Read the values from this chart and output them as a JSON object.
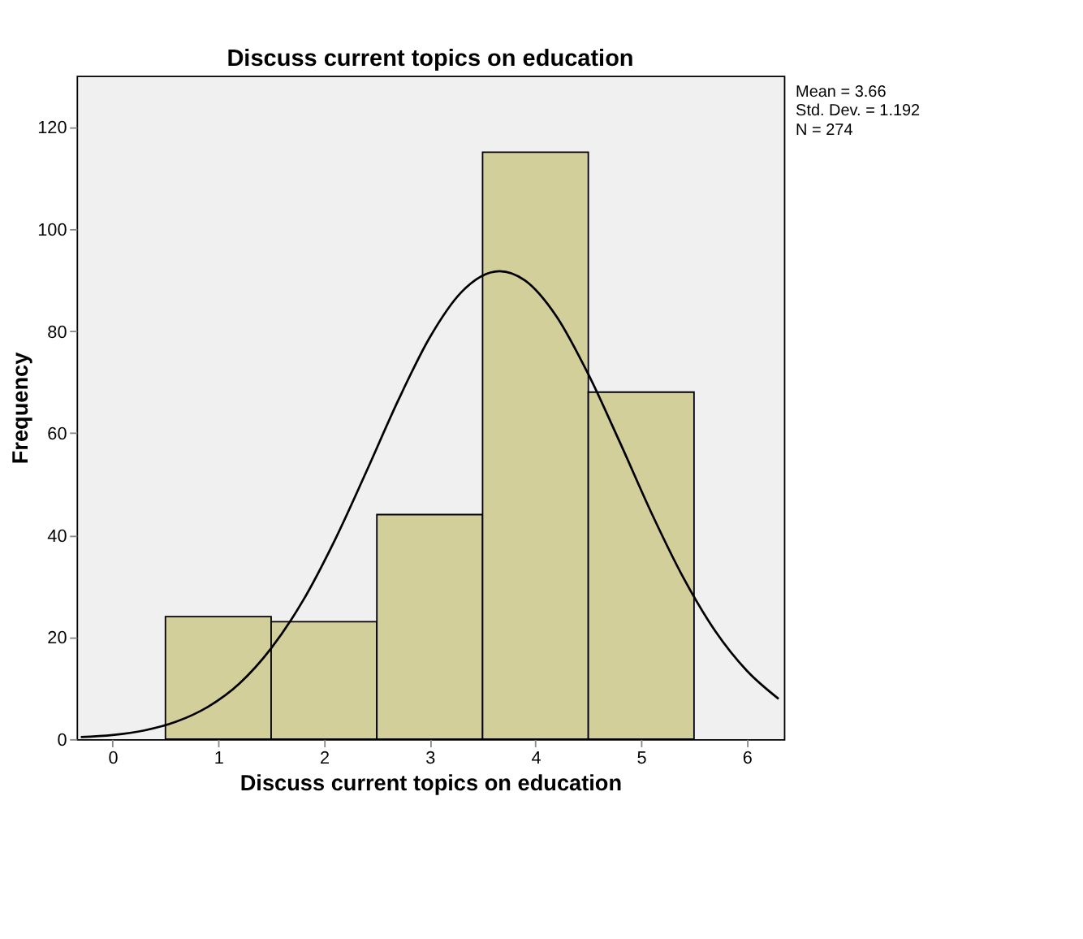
{
  "chart_data": {
    "type": "histogram",
    "title": "Discuss current topics on education",
    "xlabel": "Discuss current topics on education",
    "ylabel": "Frequency",
    "series": [
      {
        "bins": [
          0.5,
          1.5,
          2.5,
          3.5,
          4.5,
          5.5
        ],
        "values": [
          24,
          23,
          44,
          115,
          68
        ],
        "color": "#d3cf9b"
      },
      {
        "type": "line",
        "color": "#000000",
        "x": [
          -0.3,
          0,
          0.3,
          0.6,
          0.9,
          1.2,
          1.5,
          1.8,
          2.1,
          2.4,
          2.7,
          3.0,
          3.3,
          3.66,
          3.9,
          4.2,
          4.5,
          4.8,
          5.1,
          5.4,
          5.7,
          6.0,
          6.3
        ],
        "values": [
          0.4,
          0.8,
          1.7,
          3.4,
          6.3,
          10.9,
          17.8,
          27.1,
          38.9,
          52.4,
          66.3,
          78.7,
          87.6,
          91.7,
          89.9,
          82.8,
          71.5,
          58.1,
          44.2,
          31.6,
          21.2,
          13.4,
          7.9
        ]
      }
    ],
    "xlim": [
      -0.34,
      6.35
    ],
    "ylim": [
      0,
      130
    ],
    "xticks": [
      0,
      1,
      2,
      3,
      4,
      5,
      6
    ],
    "yticks": [
      0,
      20,
      40,
      60,
      80,
      100,
      120
    ],
    "grid": false,
    "annotations": [
      "Mean = 3.66",
      "Std. Dev. = 1.192",
      "N = 274"
    ]
  }
}
